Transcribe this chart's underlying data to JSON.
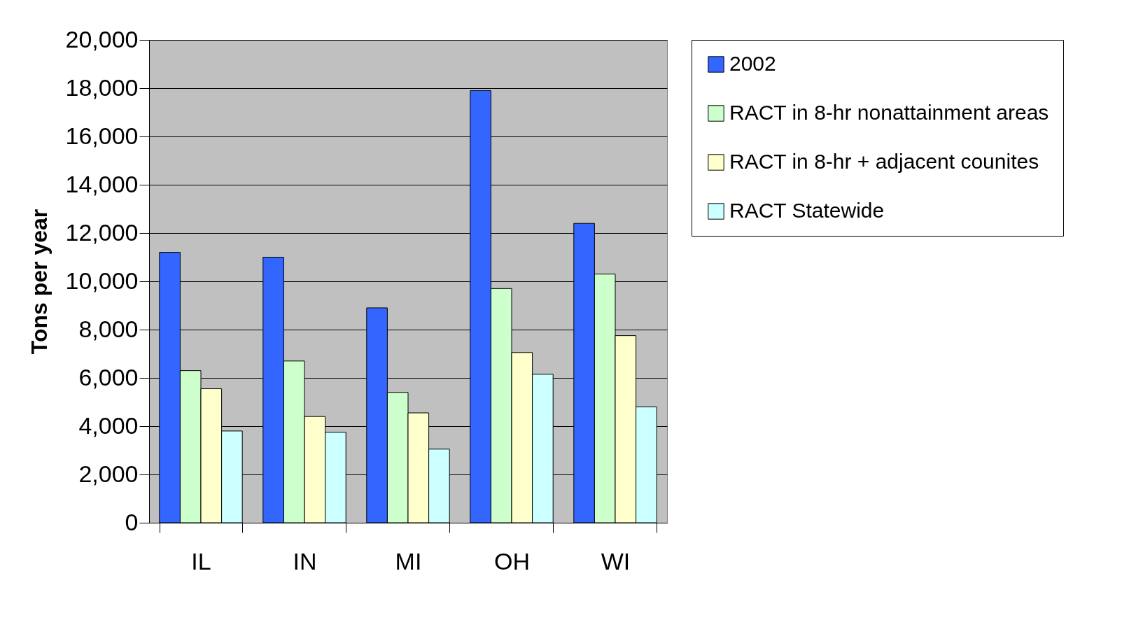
{
  "chart_data": {
    "type": "bar",
    "ylabel": "Tons per year",
    "categories": [
      "IL",
      "IN",
      "MI",
      "OH",
      "WI"
    ],
    "series": [
      {
        "name": "2002",
        "color": "#3366ff",
        "values": [
          11200,
          11000,
          8900,
          17900,
          12400
        ]
      },
      {
        "name": "RACT in 8-hr nonattainment areas",
        "color": "#ccffcc",
        "values": [
          6300,
          6700,
          5400,
          9700,
          10300
        ]
      },
      {
        "name": "RACT in 8-hr + adjacent counites",
        "color": "#ffffcc",
        "values": [
          5550,
          4400,
          4550,
          7050,
          7750
        ]
      },
      {
        "name": "RACT Statewide",
        "color": "#ccffff",
        "values": [
          3800,
          3750,
          3050,
          6150,
          4800
        ]
      }
    ],
    "ylim": [
      0,
      20000
    ],
    "yticks": [
      0,
      {
        "value": 2000,
        "label": "2,000"
      },
      {
        "value": 4000,
        "label": "4,000"
      },
      {
        "value": 6000,
        "label": "6,000"
      },
      {
        "value": 8000,
        "label": "8,000"
      },
      {
        "value": 10000,
        "label": "10,000"
      },
      {
        "value": 12000,
        "label": "12,000"
      },
      {
        "value": 14000,
        "label": "14,000"
      },
      {
        "value": 16000,
        "label": "16,000"
      },
      {
        "value": 18000,
        "label": "18,000"
      },
      {
        "value": 20000,
        "label": "20,000"
      }
    ],
    "grid": "y",
    "legend": "right"
  }
}
